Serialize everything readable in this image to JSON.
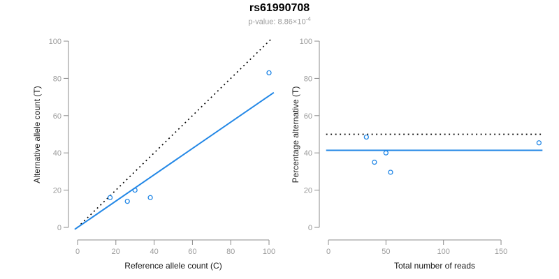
{
  "header": {
    "title": "rs61990708",
    "pvalue_label": "p-value: 8.86×10",
    "pvalue_exponent": "-4"
  },
  "colors": {
    "accent_blue": "#2287E6",
    "dotted_black": "#000000",
    "axis_gray": "#8B8B8B",
    "tick_label_gray": "#9B9B9B",
    "label_dark": "#1A1A1A"
  },
  "chart_data": [
    {
      "type": "scatter",
      "title": "rs61990708",
      "subtitle": "p-value: 8.86×10-4",
      "xlabel": "Reference allele count (C)",
      "ylabel": "Alternative allele count (T)",
      "xlim": [
        0,
        104
      ],
      "ylim": [
        0,
        104
      ],
      "xticks": [
        0,
        20,
        40,
        60,
        80,
        100
      ],
      "yticks": [
        0,
        20,
        40,
        60,
        80,
        100
      ],
      "grid": false,
      "legend": "none",
      "points": [
        {
          "x": 17,
          "y": 16
        },
        {
          "x": 26,
          "y": 14
        },
        {
          "x": 30,
          "y": 20
        },
        {
          "x": 38,
          "y": 16
        },
        {
          "x": 100,
          "y": 83
        }
      ],
      "lines": [
        {
          "name": "identity-line",
          "dash": "dotted",
          "color_key": "dotted_black",
          "x1": 0,
          "y1": 0,
          "x2": 101,
          "y2": 101
        },
        {
          "name": "fit-line",
          "dash": "solid",
          "color_key": "accent_blue",
          "x1": -1.5,
          "y1": -1.06,
          "x2": 102.5,
          "y2": 72.4
        }
      ]
    },
    {
      "type": "scatter",
      "xlabel": "Total number of reads",
      "ylabel": "Percentage alternative (T)",
      "xlim": [
        0,
        186
      ],
      "ylim": [
        0,
        104
      ],
      "xticks": [
        0,
        50,
        100,
        150
      ],
      "yticks": [
        0,
        20,
        40,
        60,
        80,
        100
      ],
      "grid": false,
      "legend": "none",
      "points": [
        {
          "x": 33,
          "y": 48.5
        },
        {
          "x": 40,
          "y": 35
        },
        {
          "x": 50,
          "y": 40
        },
        {
          "x": 54,
          "y": 29.6
        },
        {
          "x": 183,
          "y": 45.4
        }
      ],
      "lines": [
        {
          "name": "expected-50pct-line",
          "dash": "dotted",
          "color_key": "dotted_black",
          "x1": -2,
          "y1": 50,
          "x2": 186,
          "y2": 50
        },
        {
          "name": "observed-mean-line",
          "dash": "solid",
          "color_key": "accent_blue",
          "x1": -2,
          "y1": 41.4,
          "x2": 186,
          "y2": 41.4
        }
      ]
    }
  ]
}
